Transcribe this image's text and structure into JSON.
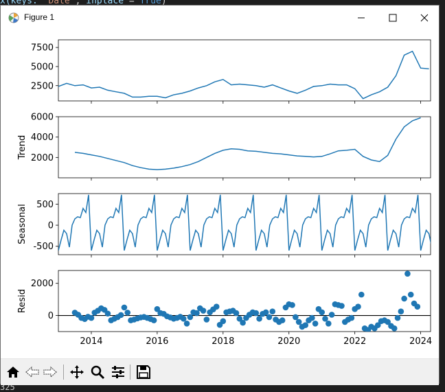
{
  "background": {
    "code_top": [
      "x(",
      "keys:",
      " 'Date'",
      ",",
      " inplace",
      " = ",
      "True",
      ")"
    ],
    "code_bottom": "325"
  },
  "window": {
    "title": "Figure 1",
    "icon": "matplotlib-icon",
    "controls": [
      "minimize-icon",
      "maximize-icon",
      "close-icon"
    ]
  },
  "toolbar": {
    "buttons": [
      "home-icon",
      "back-arrow-icon",
      "forward-arrow-icon",
      "pan-icon",
      "zoom-icon",
      "configure-subplots-icon",
      "save-icon"
    ]
  },
  "chart_data": [
    {
      "type": "line",
      "panel": "observed",
      "ylabel": "",
      "ylim": [
        500,
        8500
      ],
      "yticks": [
        2500,
        5000,
        7500
      ],
      "x": [
        2013.0,
        2013.25,
        2013.5,
        2013.75,
        2014.0,
        2014.25,
        2014.5,
        2014.75,
        2015.0,
        2015.25,
        2015.5,
        2015.75,
        2016.0,
        2016.25,
        2016.5,
        2016.75,
        2017.0,
        2017.25,
        2017.5,
        2017.75,
        2018.0,
        2018.25,
        2018.5,
        2018.75,
        2019.0,
        2019.25,
        2019.5,
        2019.75,
        2020.0,
        2020.25,
        2020.5,
        2020.75,
        2021.0,
        2021.25,
        2021.5,
        2021.75,
        2022.0,
        2022.25,
        2022.5,
        2022.75,
        2023.0,
        2023.25,
        2023.5,
        2023.75,
        2024.0,
        2024.25
      ],
      "values": [
        2400,
        2800,
        2500,
        2600,
        2200,
        2300,
        1900,
        1700,
        1500,
        1000,
        1000,
        1100,
        1100,
        900,
        1300,
        1500,
        1800,
        2200,
        2500,
        3000,
        3300,
        2600,
        2700,
        2600,
        2500,
        2300,
        2600,
        2200,
        1800,
        1500,
        1900,
        2400,
        2500,
        2700,
        2600,
        2600,
        2100,
        800,
        1300,
        1700,
        2300,
        3800,
        6500,
        7000,
        4800,
        4700
      ],
      "series_color": "#1f77b4"
    },
    {
      "type": "line",
      "panel": "trend",
      "ylabel": "Trend",
      "ylim": [
        0,
        6000
      ],
      "yticks": [
        2000,
        4000,
        6000
      ],
      "x": [
        2013.5,
        2013.75,
        2014.0,
        2014.25,
        2014.5,
        2014.75,
        2015.0,
        2015.25,
        2015.5,
        2015.75,
        2016.0,
        2016.25,
        2016.5,
        2016.75,
        2017.0,
        2017.25,
        2017.5,
        2017.75,
        2018.0,
        2018.25,
        2018.5,
        2018.75,
        2019.0,
        2019.25,
        2019.5,
        2019.75,
        2020.0,
        2020.25,
        2020.5,
        2020.75,
        2021.0,
        2021.25,
        2021.5,
        2021.75,
        2022.0,
        2022.25,
        2022.5,
        2022.75,
        2023.0,
        2023.25,
        2023.5,
        2023.75,
        2024.0
      ],
      "values": [
        2500,
        2400,
        2250,
        2100,
        1900,
        1700,
        1500,
        1200,
        1000,
        850,
        800,
        850,
        950,
        1100,
        1300,
        1600,
        2000,
        2400,
        2700,
        2850,
        2800,
        2650,
        2600,
        2500,
        2400,
        2350,
        2250,
        2150,
        2100,
        2050,
        2100,
        2350,
        2650,
        2700,
        2800,
        2100,
        1750,
        1600,
        2200,
        3800,
        5000,
        5600,
        5900
      ],
      "series_color": "#1f77b4"
    },
    {
      "type": "line",
      "panel": "seasonal",
      "ylabel": "Seasonal",
      "ylim": [
        -700,
        750
      ],
      "yticks": [
        -500,
        0,
        500
      ],
      "period": 12,
      "pattern": [
        -600,
        -350,
        -120,
        -200,
        -520,
        0,
        150,
        200,
        180,
        400,
        300,
        720
      ],
      "series_color": "#1f77b4"
    },
    {
      "type": "scatter",
      "panel": "resid",
      "ylabel": "Resid",
      "ylim": [
        -1000,
        2800
      ],
      "yticks": [
        0,
        2000
      ],
      "zero_line": true,
      "points": [
        [
          2013.5,
          180
        ],
        [
          2013.6,
          50
        ],
        [
          2013.7,
          -150
        ],
        [
          2013.8,
          -220
        ],
        [
          2013.9,
          -80
        ],
        [
          2014.0,
          -150
        ],
        [
          2014.1,
          180
        ],
        [
          2014.2,
          300
        ],
        [
          2014.3,
          450
        ],
        [
          2014.4,
          350
        ],
        [
          2014.5,
          120
        ],
        [
          2014.6,
          -300
        ],
        [
          2014.7,
          -200
        ],
        [
          2014.8,
          -100
        ],
        [
          2014.9,
          30
        ],
        [
          2015.0,
          500
        ],
        [
          2015.1,
          180
        ],
        [
          2015.2,
          -300
        ],
        [
          2015.3,
          -250
        ],
        [
          2015.4,
          -180
        ],
        [
          2015.5,
          -120
        ],
        [
          2015.6,
          -90
        ],
        [
          2015.7,
          -150
        ],
        [
          2015.8,
          -220
        ],
        [
          2015.9,
          -300
        ],
        [
          2016.0,
          400
        ],
        [
          2016.1,
          150
        ],
        [
          2016.2,
          100
        ],
        [
          2016.3,
          -50
        ],
        [
          2016.4,
          -120
        ],
        [
          2016.5,
          -200
        ],
        [
          2016.6,
          -150
        ],
        [
          2016.7,
          -80
        ],
        [
          2016.8,
          -200
        ],
        [
          2016.9,
          -500
        ],
        [
          2017.0,
          -100
        ],
        [
          2017.1,
          200
        ],
        [
          2017.2,
          150
        ],
        [
          2017.3,
          450
        ],
        [
          2017.4,
          300
        ],
        [
          2017.5,
          -250
        ],
        [
          2017.6,
          200
        ],
        [
          2017.7,
          380
        ],
        [
          2017.8,
          550
        ],
        [
          2017.9,
          -580
        ],
        [
          2018.0,
          -350
        ],
        [
          2018.1,
          200
        ],
        [
          2018.2,
          250
        ],
        [
          2018.3,
          300
        ],
        [
          2018.4,
          150
        ],
        [
          2018.5,
          -200
        ],
        [
          2018.6,
          -450
        ],
        [
          2018.7,
          -150
        ],
        [
          2018.8,
          50
        ],
        [
          2018.9,
          200
        ],
        [
          2019.0,
          150
        ],
        [
          2019.1,
          -200
        ],
        [
          2019.2,
          100
        ],
        [
          2019.3,
          200
        ],
        [
          2019.4,
          -100
        ],
        [
          2019.5,
          250
        ],
        [
          2019.6,
          -250
        ],
        [
          2019.7,
          -400
        ],
        [
          2019.8,
          -300
        ],
        [
          2019.9,
          500
        ],
        [
          2020.0,
          700
        ],
        [
          2020.1,
          650
        ],
        [
          2020.2,
          -100
        ],
        [
          2020.3,
          -400
        ],
        [
          2020.4,
          -700
        ],
        [
          2020.5,
          -600
        ],
        [
          2020.6,
          -300
        ],
        [
          2020.7,
          -150
        ],
        [
          2020.8,
          -500
        ],
        [
          2020.9,
          400
        ],
        [
          2021.0,
          200
        ],
        [
          2021.1,
          -200
        ],
        [
          2021.2,
          -500
        ],
        [
          2021.3,
          50
        ],
        [
          2021.4,
          700
        ],
        [
          2021.5,
          650
        ],
        [
          2021.6,
          600
        ],
        [
          2021.7,
          -400
        ],
        [
          2021.8,
          -250
        ],
        [
          2021.9,
          -150
        ],
        [
          2022.0,
          400
        ],
        [
          2022.1,
          550
        ],
        [
          2022.2,
          1300
        ],
        [
          2022.3,
          -800
        ],
        [
          2022.4,
          -900
        ],
        [
          2022.5,
          -700
        ],
        [
          2022.6,
          -800
        ],
        [
          2022.7,
          -600
        ],
        [
          2022.8,
          -350
        ],
        [
          2022.9,
          -300
        ],
        [
          2023.0,
          -400
        ],
        [
          2023.1,
          -650
        ],
        [
          2023.2,
          -800
        ],
        [
          2023.3,
          -150
        ],
        [
          2023.4,
          250
        ],
        [
          2023.5,
          1050
        ],
        [
          2023.6,
          2600
        ],
        [
          2023.7,
          1300
        ],
        [
          2023.8,
          750
        ],
        [
          2023.9,
          550
        ]
      ],
      "series_color": "#1f77b4"
    }
  ],
  "x_axis": {
    "xlim": [
      2013.0,
      2024.3
    ],
    "ticks": [
      2014,
      2016,
      2018,
      2020,
      2022,
      2024
    ],
    "labels": [
      "2014",
      "2016",
      "2018",
      "2020",
      "2022",
      "2024"
    ]
  }
}
